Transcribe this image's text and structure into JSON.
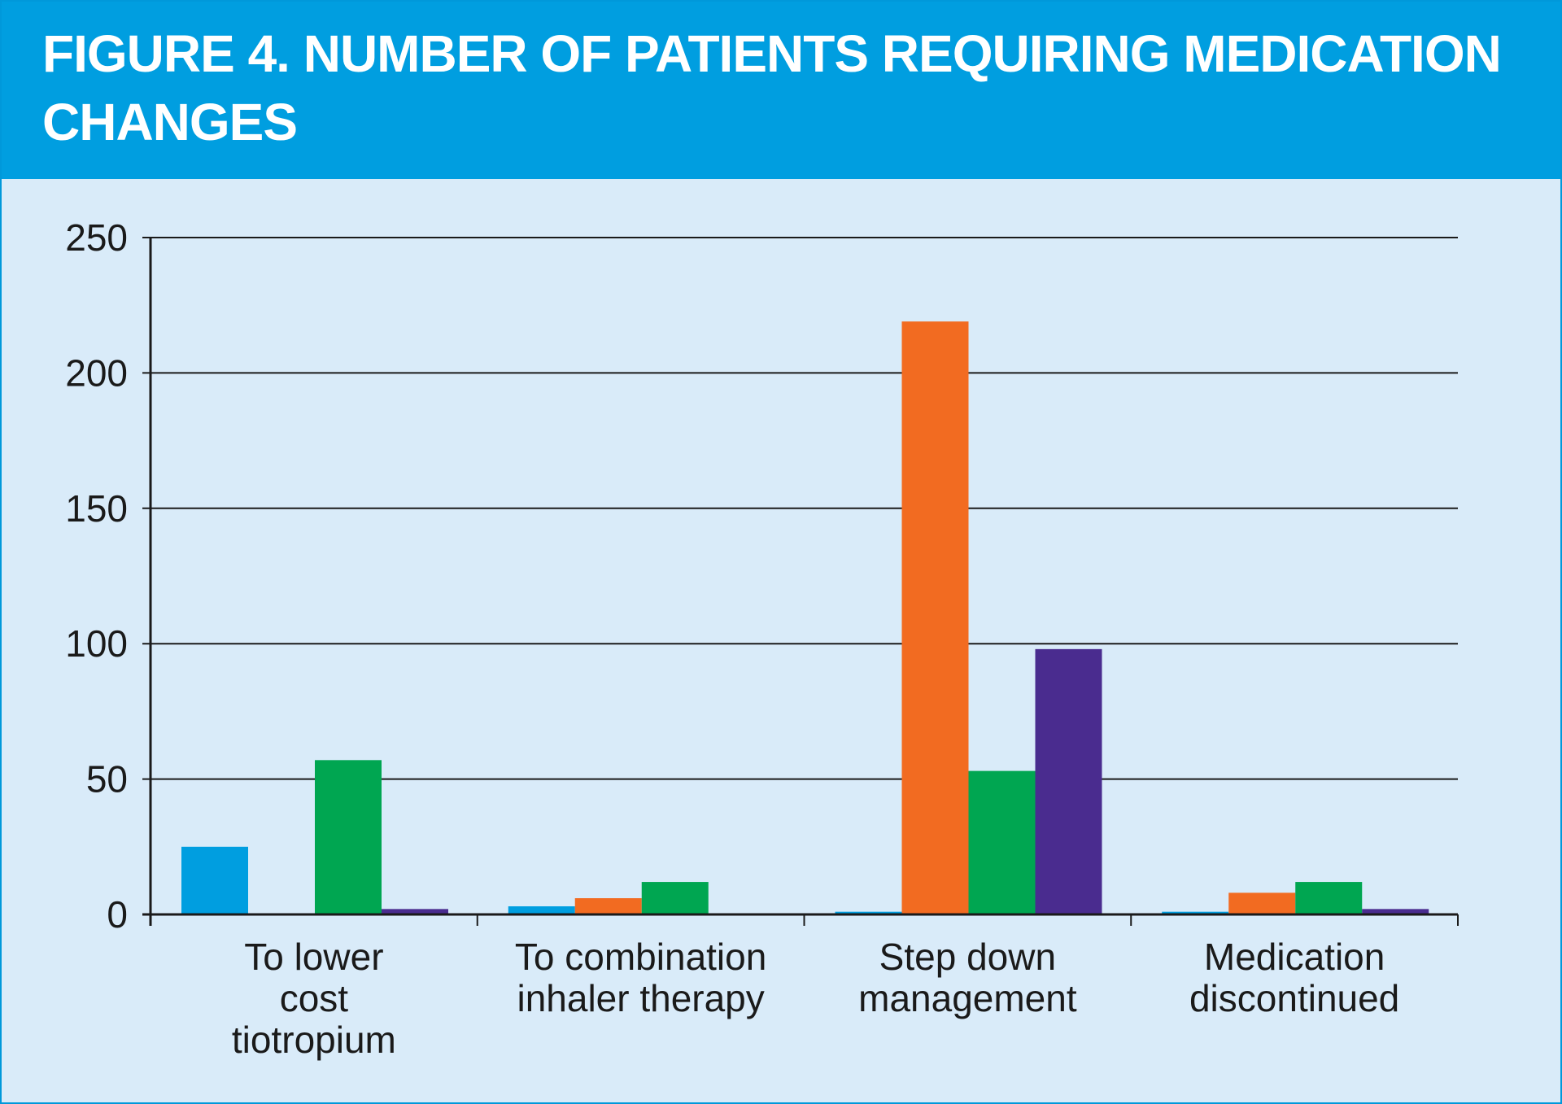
{
  "header": {
    "title": "FIGURE 4. NUMBER OF PATIENTS REQUIRING MEDICATION CHANGES"
  },
  "colors": {
    "header_bg": "#009ee0",
    "panel_bg": "#d9ebf9",
    "gridline": "#1a1a1a"
  },
  "chart_data": {
    "type": "bar",
    "title": "FIGURE 4. NUMBER OF PATIENTS REQUIRING MEDICATION CHANGES",
    "categories": [
      [
        "To lower",
        "cost",
        "tiotropium"
      ],
      [
        "To combination",
        "inhaler therapy"
      ],
      [
        "Step down",
        "management"
      ],
      [
        "Medication",
        "discontinued"
      ]
    ],
    "series": [
      {
        "color": "#009ee0",
        "values": [
          25,
          3,
          1,
          1
        ]
      },
      {
        "color": "#f26b21",
        "values": [
          0,
          6,
          219,
          8
        ]
      },
      {
        "color": "#00a651",
        "values": [
          57,
          12,
          53,
          12
        ]
      },
      {
        "color": "#4a2c8f",
        "values": [
          2,
          0,
          98,
          2
        ]
      }
    ],
    "ylim": [
      0,
      250
    ],
    "yticks": [
      0,
      50,
      100,
      150,
      200,
      250
    ],
    "grid": true,
    "legend": "none",
    "xlabel": "",
    "ylabel": ""
  }
}
